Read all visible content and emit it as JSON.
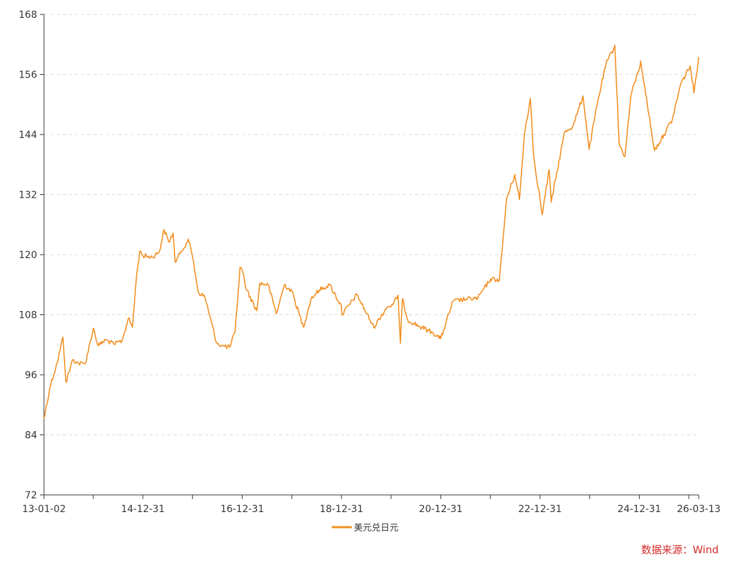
{
  "source_text": "数据来源：Wind",
  "colors": {
    "series": "#f28e20",
    "grid": "#dddddd",
    "axis": "#333333",
    "source": "#d42a2a"
  },
  "chart_data": {
    "type": "line",
    "title": "",
    "xlabel": "",
    "ylabel": "",
    "ylim": [
      72,
      168
    ],
    "yticks": [
      72,
      84,
      96,
      108,
      120,
      132,
      144,
      156,
      168
    ],
    "xticks": [
      "13-01-02",
      "14-12-31",
      "16-12-31",
      "18-12-31",
      "20-12-31",
      "22-12-31",
      "24-12-31",
      "26-03-13"
    ],
    "grid": true,
    "legend_position": "bottom",
    "series": [
      {
        "name": "美元兑日元",
        "color": "#f28e20",
        "x": [
          "2013-01-02",
          "2013-02-15",
          "2013-04-10",
          "2013-05-22",
          "2013-06-13",
          "2013-08-01",
          "2013-09-15",
          "2013-11-01",
          "2013-12-31",
          "2014-02-05",
          "2014-04-01",
          "2014-06-01",
          "2014-07-31",
          "2014-09-15",
          "2014-10-15",
          "2014-11-15",
          "2014-12-08",
          "2014-12-31",
          "2015-03-10",
          "2015-05-01",
          "2015-06-05",
          "2015-07-10",
          "2015-08-10",
          "2015-08-25",
          "2015-10-01",
          "2015-11-30",
          "2016-01-05",
          "2016-02-11",
          "2016-04-01",
          "2016-06-24",
          "2016-08-01",
          "2016-09-30",
          "2016-11-08",
          "2016-12-15",
          "2016-12-31",
          "2017-01-31",
          "2017-04-17",
          "2017-05-10",
          "2017-07-10",
          "2017-09-08",
          "2017-11-06",
          "2017-12-31",
          "2018-03-26",
          "2018-05-21",
          "2018-07-19",
          "2018-10-04",
          "2018-12-31",
          "2019-01-03",
          "2019-04-24",
          "2019-08-26",
          "2019-11-30",
          "2020-01-15",
          "2020-02-20",
          "2020-03-09",
          "2020-03-24",
          "2020-05-01",
          "2020-07-31",
          "2020-10-31",
          "2020-12-31",
          "2021-03-31",
          "2021-06-30",
          "2021-09-30",
          "2021-12-31",
          "2022-03-07",
          "2022-03-28",
          "2022-04-28",
          "2022-06-29",
          "2022-08-02",
          "2022-09-07",
          "2022-10-21",
          "2022-11-15",
          "2022-12-31",
          "2023-01-16",
          "2023-03-08",
          "2023-03-24",
          "2023-06-30",
          "2023-08-31",
          "2023-11-13",
          "2023-12-28",
          "2024-02-28",
          "2024-04-29",
          "2024-06-30",
          "2024-07-03",
          "2024-08-05",
          "2024-09-16",
          "2024-10-31",
          "2024-12-31",
          "2025-01-10",
          "2025-04-21",
          "2025-06-30",
          "2025-08-31",
          "2025-10-31",
          "2026-01-09",
          "2026-02-06",
          "2026-03-13"
        ],
        "values": [
          87.2,
          93.5,
          98.5,
          103.5,
          94.5,
          99.0,
          98.3,
          98.2,
          105.3,
          101.8,
          103.0,
          102.1,
          102.8,
          107.3,
          105.5,
          116.0,
          120.7,
          119.8,
          119.5,
          120.6,
          125.0,
          122.5,
          124.3,
          118.5,
          120.2,
          123.1,
          119.0,
          112.5,
          111.5,
          102.5,
          101.8,
          101.5,
          104.5,
          117.5,
          116.9,
          113.0,
          108.8,
          114.3,
          114.0,
          108.2,
          114.0,
          112.7,
          105.5,
          111.2,
          112.9,
          114.0,
          109.7,
          108.0,
          112.0,
          105.5,
          109.5,
          110.0,
          111.9,
          102.3,
          111.2,
          107.0,
          105.6,
          104.5,
          103.2,
          110.7,
          111.1,
          111.3,
          115.1,
          115.0,
          121.0,
          131.0,
          136.0,
          131.0,
          144.0,
          151.2,
          139.5,
          131.1,
          128.0,
          137.0,
          130.5,
          144.5,
          145.7,
          151.7,
          141.0,
          150.5,
          158.0,
          161.5,
          161.9,
          142.0,
          139.6,
          152.0,
          157.2,
          158.7,
          140.8,
          144.0,
          147.0,
          154.1,
          157.7,
          152.3,
          159.5
        ]
      }
    ]
  }
}
